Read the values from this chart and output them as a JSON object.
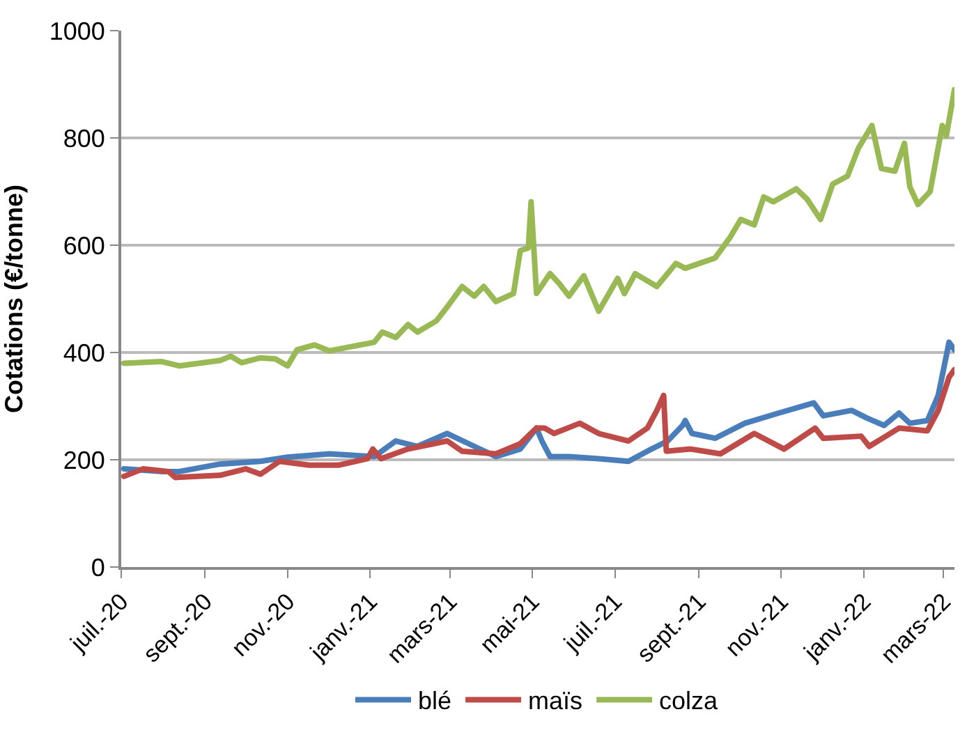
{
  "chart_data": {
    "type": "line",
    "ylabel": "Cotations (€/tonne)",
    "xlim": [
      "2020-07-01",
      "2022-03-09"
    ],
    "xticks": [
      {
        "value": "2020-07-01",
        "label": "juil.-20"
      },
      {
        "value": "2020-09-01",
        "label": "sept.-20"
      },
      {
        "value": "2020-11-01",
        "label": "nov.-20"
      },
      {
        "value": "2021-01-01",
        "label": "janv.-21"
      },
      {
        "value": "2021-03-01",
        "label": "mars-21"
      },
      {
        "value": "2021-05-01",
        "label": "mai-21"
      },
      {
        "value": "2021-07-01",
        "label": "juil.-21"
      },
      {
        "value": "2021-09-01",
        "label": "sept.-21"
      },
      {
        "value": "2021-11-01",
        "label": "nov.-21"
      },
      {
        "value": "2022-01-01",
        "label": "janv.-22"
      },
      {
        "value": "2022-03-01",
        "label": "mars-22"
      }
    ],
    "ylim": [
      0,
      1000
    ],
    "yticks": [
      0,
      200,
      400,
      600,
      800,
      1000
    ],
    "grid": "y",
    "legend": "bottom",
    "marker": "none",
    "line_style": "solid",
    "series": [
      {
        "name": "blé",
        "color": "#4a7ebb",
        "x": [
          "2020-07-03",
          "2020-08-01",
          "2020-08-13",
          "2020-09-12",
          "2020-10-12",
          "2020-11-01",
          "2020-12-02",
          "2021-01-04",
          "2021-01-20",
          "2021-02-05",
          "2021-02-27",
          "2021-03-19",
          "2021-04-04",
          "2021-04-22",
          "2021-05-04",
          "2021-05-08",
          "2021-05-14",
          "2021-05-28",
          "2021-06-19",
          "2021-07-11",
          "2021-07-25",
          "2021-08-09",
          "2021-08-20",
          "2021-08-22",
          "2021-08-27",
          "2021-09-13",
          "2021-10-05",
          "2021-10-30",
          "2021-11-25",
          "2021-12-02",
          "2021-12-23",
          "2022-01-03",
          "2022-01-16",
          "2022-01-27",
          "2022-02-04",
          "2022-02-17",
          "2022-02-25",
          "2022-03-05",
          "2022-03-09"
        ],
        "values": [
          183,
          178,
          178,
          192,
          197,
          205,
          211,
          206,
          235,
          225,
          249,
          225,
          206,
          220,
          259,
          235,
          206,
          206,
          202,
          197,
          216,
          235,
          264,
          273,
          249,
          240,
          268,
          287,
          306,
          282,
          292,
          278,
          264,
          287,
          268,
          273,
          320,
          419,
          405
        ]
      },
      {
        "name": "maïs",
        "color": "#be4b48",
        "x": [
          "2020-07-03",
          "2020-07-17",
          "2020-08-05",
          "2020-08-10",
          "2020-09-12",
          "2020-10-01",
          "2020-10-12",
          "2020-10-26",
          "2020-11-17",
          "2020-12-09",
          "2020-12-30",
          "2021-01-03",
          "2021-01-09",
          "2021-01-29",
          "2021-02-27",
          "2021-03-10",
          "2021-04-04",
          "2021-04-22",
          "2021-05-04",
          "2021-05-10",
          "2021-05-17",
          "2021-06-05",
          "2021-06-19",
          "2021-07-11",
          "2021-07-25",
          "2021-08-01",
          "2021-08-06",
          "2021-08-08",
          "2021-08-26",
          "2021-09-17",
          "2021-10-12",
          "2021-11-03",
          "2021-11-26",
          "2021-12-02",
          "2021-12-30",
          "2022-01-05",
          "2022-01-27",
          "2022-02-17",
          "2022-02-25",
          "2022-03-05",
          "2022-03-09"
        ],
        "values": [
          169,
          183,
          178,
          167,
          171,
          183,
          173,
          197,
          190,
          190,
          202,
          220,
          202,
          220,
          235,
          216,
          211,
          230,
          259,
          259,
          249,
          268,
          249,
          235,
          259,
          292,
          320,
          216,
          220,
          211,
          249,
          220,
          259,
          240,
          244,
          225,
          259,
          254,
          292,
          354,
          368
        ]
      },
      {
        "name": "colza",
        "color": "#98b954",
        "x": [
          "2020-07-03",
          "2020-07-31",
          "2020-08-13",
          "2020-09-12",
          "2020-09-20",
          "2020-09-28",
          "2020-10-12",
          "2020-10-23",
          "2020-11-01",
          "2020-11-08",
          "2020-11-21",
          "2020-12-02",
          "2020-12-16",
          "2021-01-04",
          "2021-01-10",
          "2021-01-20",
          "2021-01-29",
          "2021-02-05",
          "2021-02-19",
          "2021-02-27",
          "2021-03-10",
          "2021-03-19",
          "2021-03-26",
          "2021-04-04",
          "2021-04-17",
          "2021-04-22",
          "2021-04-28",
          "2021-04-30",
          "2021-05-04",
          "2021-05-14",
          "2021-05-21",
          "2021-05-28",
          "2021-06-08",
          "2021-06-19",
          "2021-07-03",
          "2021-07-08",
          "2021-07-16",
          "2021-08-01",
          "2021-08-15",
          "2021-08-22",
          "2021-09-13",
          "2021-09-24",
          "2021-10-02",
          "2021-10-12",
          "2021-10-19",
          "2021-10-26",
          "2021-11-12",
          "2021-11-20",
          "2021-11-30",
          "2021-12-09",
          "2021-12-20",
          "2021-12-28",
          "2022-01-07",
          "2022-01-14",
          "2022-01-24",
          "2022-01-31",
          "2022-02-04",
          "2022-02-10",
          "2022-02-19",
          "2022-02-28",
          "2022-03-03",
          "2022-03-09"
        ],
        "values": [
          380,
          383,
          375,
          385,
          393,
          381,
          390,
          388,
          375,
          405,
          414,
          403,
          410,
          419,
          438,
          428,
          452,
          438,
          459,
          485,
          523,
          505,
          523,
          495,
          510,
          590,
          595,
          681,
          510,
          547,
          528,
          505,
          543,
          477,
          538,
          510,
          547,
          523,
          566,
          557,
          576,
          614,
          648,
          638,
          690,
          681,
          705,
          686,
          648,
          714,
          729,
          781,
          823,
          743,
          738,
          790,
          709,
          676,
          700,
          823,
          804,
          890
        ]
      }
    ]
  }
}
